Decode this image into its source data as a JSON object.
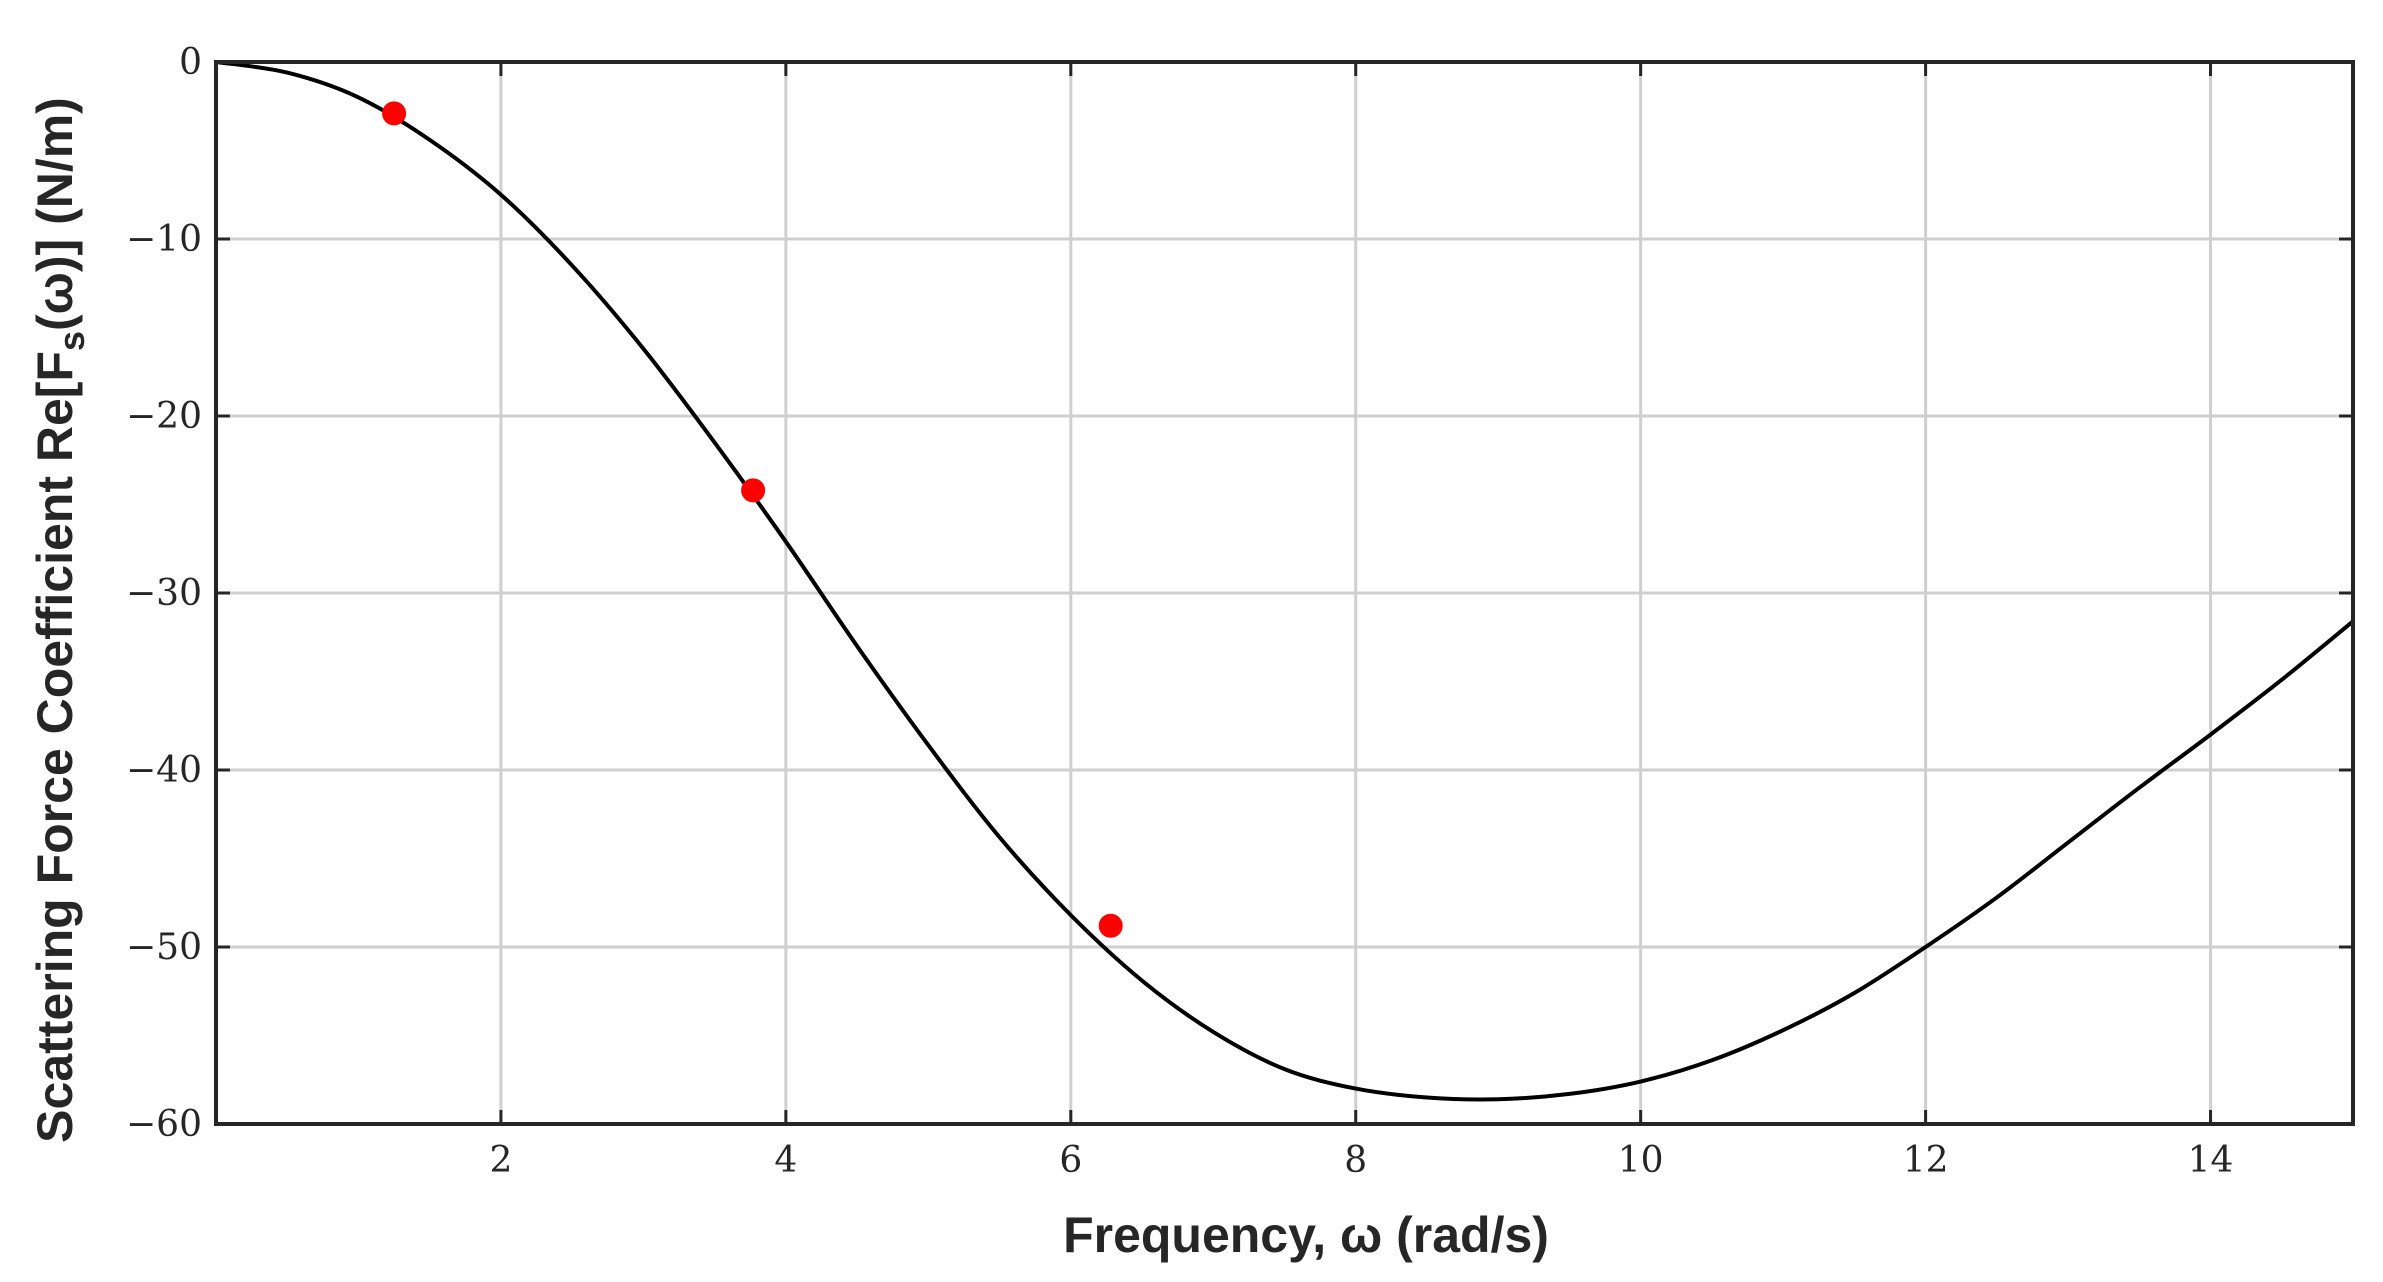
{
  "chart_data": {
    "type": "line",
    "xlabel": "Frequency, ω (rad/s)",
    "ylabel": "Scattering Force Coefficient Re[F_s(ω)] (N/m)",
    "xlim": [
      0,
      15
    ],
    "ylim": [
      -60,
      0
    ],
    "grid": true,
    "x_ticks": [
      2,
      4,
      6,
      8,
      10,
      12,
      14
    ],
    "y_ticks": [
      0,
      -10,
      -20,
      -30,
      -40,
      -50,
      -60
    ],
    "x_tick_labels": [
      "2",
      "4",
      "6",
      "8",
      "10",
      "12",
      "14"
    ],
    "y_tick_labels": [
      "0",
      "−10",
      "−20",
      "−30",
      "−40",
      "−50",
      "−60"
    ],
    "series": [
      {
        "type": "line",
        "color": "#000000",
        "x": [
          0,
          0.5,
          1,
          1.5,
          2,
          2.5,
          3,
          3.5,
          4,
          4.5,
          5,
          5.5,
          6,
          6.5,
          7,
          7.5,
          8,
          8.5,
          9,
          9.5,
          10,
          10.5,
          11,
          11.5,
          12,
          12.5,
          13,
          13.5,
          14,
          14.5,
          15
        ],
        "y": [
          0,
          -0.6,
          -2.0,
          -4.4,
          -7.5,
          -11.5,
          -16.2,
          -21.5,
          -27.1,
          -33.0,
          -38.6,
          -43.8,
          -48.2,
          -51.9,
          -54.8,
          -56.9,
          -58.0,
          -58.5,
          -58.6,
          -58.3,
          -57.6,
          -56.4,
          -54.7,
          -52.6,
          -50.0,
          -47.2,
          -44.1,
          -41.0,
          -38.0,
          -34.9,
          -31.6
        ]
      },
      {
        "type": "scatter",
        "color": "#ff0000",
        "x": [
          1.25,
          3.77,
          6.28
        ],
        "y": [
          -2.9,
          -24.2,
          -48.8
        ]
      }
    ]
  }
}
